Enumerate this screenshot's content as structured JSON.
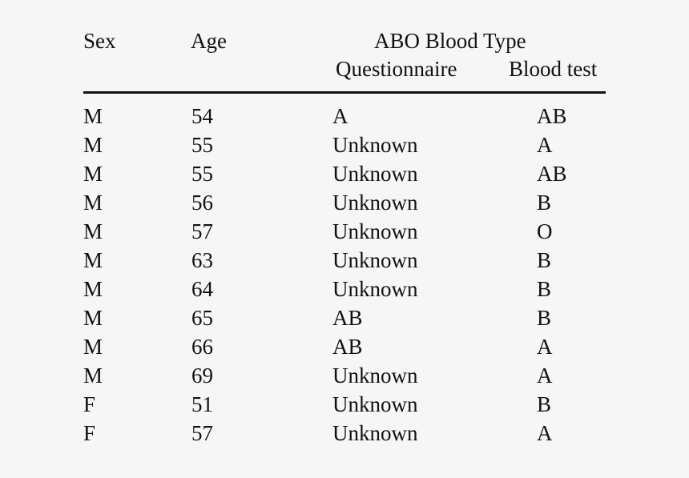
{
  "table": {
    "headers": {
      "sex": "Sex",
      "age": "Age",
      "group": "ABO Blood Type",
      "questionnaire": "Questionnaire",
      "blood_test": "Blood test"
    },
    "rows": [
      {
        "sex": "M",
        "age": "54",
        "questionnaire": "A",
        "blood_test": "AB"
      },
      {
        "sex": "M",
        "age": "55",
        "questionnaire": "Unknown",
        "blood_test": "A"
      },
      {
        "sex": "M",
        "age": "55",
        "questionnaire": "Unknown",
        "blood_test": "AB"
      },
      {
        "sex": "M",
        "age": "56",
        "questionnaire": "Unknown",
        "blood_test": "B"
      },
      {
        "sex": "M",
        "age": "57",
        "questionnaire": "Unknown",
        "blood_test": "O"
      },
      {
        "sex": "M",
        "age": "63",
        "questionnaire": "Unknown",
        "blood_test": "B"
      },
      {
        "sex": "M",
        "age": "64",
        "questionnaire": "Unknown",
        "blood_test": "B"
      },
      {
        "sex": "M",
        "age": "65",
        "questionnaire": "AB",
        "blood_test": "B"
      },
      {
        "sex": "M",
        "age": "66",
        "questionnaire": "AB",
        "blood_test": "A"
      },
      {
        "sex": "M",
        "age": "69",
        "questionnaire": "Unknown",
        "blood_test": "A"
      },
      {
        "sex": "F",
        "age": "51",
        "questionnaire": "Unknown",
        "blood_test": "B"
      },
      {
        "sex": "F",
        "age": "57",
        "questionnaire": "Unknown",
        "blood_test": "A"
      }
    ]
  }
}
